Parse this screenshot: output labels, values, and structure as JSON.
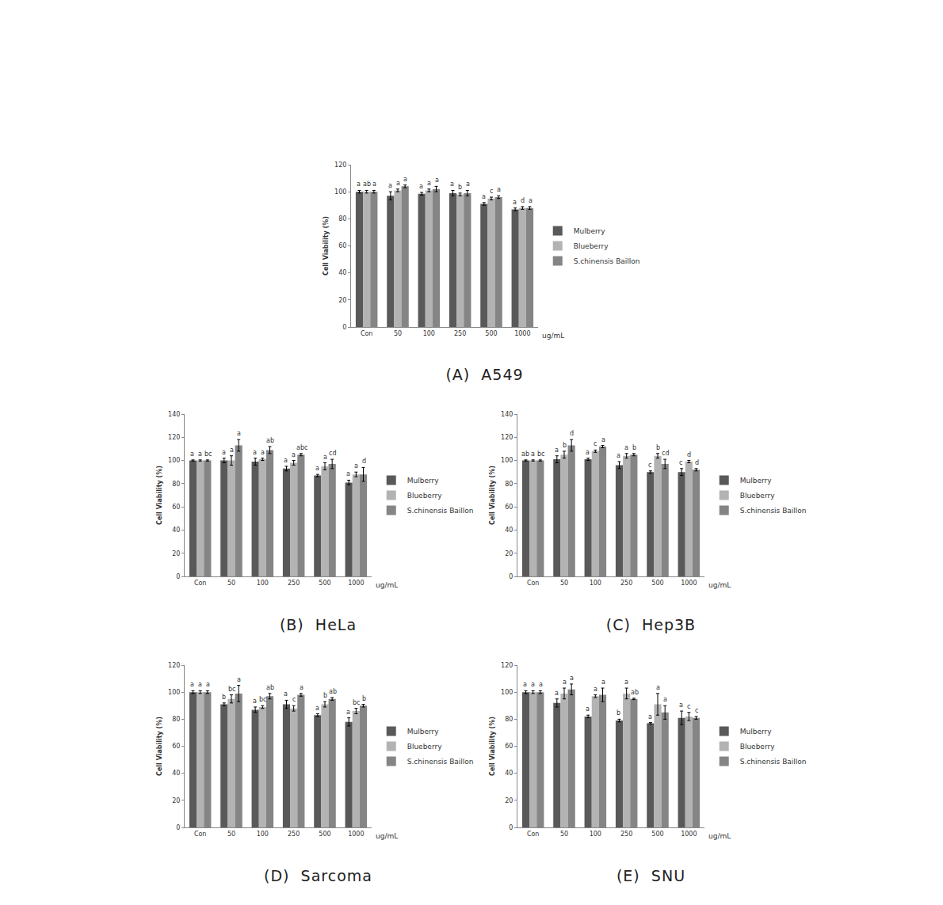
{
  "chart_data": [
    {
      "type": "bar",
      "title": "(A)  A549",
      "categories": [
        "Con",
        "50",
        "100",
        "250",
        "500",
        "1000"
      ],
      "x_label": "ug/mL",
      "y_label": "Cell Viability (%)",
      "ylim": [
        0,
        120
      ],
      "yticks": [
        0,
        20,
        40,
        60,
        80,
        100,
        120
      ],
      "grid": false,
      "series": [
        {
          "name": "Mulberry",
          "color": "#595959",
          "values": [
            100,
            97,
            98.5,
            99,
            91,
            87
          ],
          "errors": [
            1,
            3,
            1,
            2,
            1,
            1
          ],
          "letters": [
            "a",
            "a",
            "a",
            "a",
            "a",
            "a"
          ]
        },
        {
          "name": "Blueberry",
          "color": "#b3b3b3",
          "values": [
            100,
            101,
            101,
            98,
            95,
            88
          ],
          "errors": [
            1,
            1,
            1,
            1,
            1,
            1
          ],
          "letters": [
            "ab",
            "a",
            "a",
            "b",
            "c",
            "d"
          ]
        },
        {
          "name": "S.chinensis Baillon",
          "color": "#858585",
          "values": [
            100,
            104,
            102,
            99,
            96,
            88
          ],
          "errors": [
            1,
            1,
            2,
            2,
            1,
            1
          ],
          "letters": [
            "a",
            "a",
            "a",
            "a",
            "a",
            "a"
          ]
        }
      ]
    },
    {
      "type": "bar",
      "title": "(B)  HeLa",
      "categories": [
        "Con",
        "50",
        "100",
        "250",
        "500",
        "1000"
      ],
      "x_label": "ug/mL",
      "y_label": "Cell Viability (%)",
      "ylim": [
        0,
        140
      ],
      "yticks": [
        0,
        20,
        40,
        60,
        80,
        100,
        120,
        140
      ],
      "grid": false,
      "series": [
        {
          "name": "Mulberry",
          "color": "#595959",
          "values": [
            100,
            100,
            99,
            93,
            87,
            81
          ],
          "errors": [
            0.5,
            2,
            3,
            2,
            1,
            2
          ],
          "letters": [
            "a",
            "a",
            "a",
            "a",
            "a",
            "a"
          ]
        },
        {
          "name": "Blueberry",
          "color": "#b3b3b3",
          "values": [
            100,
            100,
            101,
            98,
            95,
            88
          ],
          "errors": [
            0.5,
            4,
            1,
            2,
            3,
            2
          ],
          "letters": [
            "a",
            "a",
            "a",
            "a",
            "a",
            "a"
          ]
        },
        {
          "name": "S.chinensis Baillon",
          "color": "#858585",
          "values": [
            100,
            113,
            109,
            105,
            97,
            88
          ],
          "errors": [
            0.5,
            5,
            3,
            1,
            4,
            6
          ],
          "letters": [
            "bc",
            "a",
            "ab",
            "abc",
            "cd",
            "d"
          ]
        }
      ]
    },
    {
      "type": "bar",
      "title": "(C)  Hep3B",
      "categories": [
        "Con",
        "50",
        "100",
        "250",
        "500",
        "1000"
      ],
      "x_label": "ug/mL",
      "y_label": "Cell Viability (%)",
      "ylim": [
        0,
        140
      ],
      "yticks": [
        0,
        20,
        40,
        60,
        80,
        100,
        120,
        140
      ],
      "grid": false,
      "series": [
        {
          "name": "Mulberry",
          "color": "#595959",
          "values": [
            100,
            101,
            101,
            96,
            90,
            90
          ],
          "errors": [
            0.5,
            3,
            1,
            3,
            1,
            3
          ],
          "letters": [
            "ab",
            "a",
            "a",
            "a",
            "c",
            "c"
          ]
        },
        {
          "name": "Blueberry",
          "color": "#b3b3b3",
          "values": [
            100,
            105,
            108,
            104,
            104,
            99
          ],
          "errors": [
            0.5,
            3,
            1,
            2,
            2,
            1
          ],
          "letters": [
            "a",
            "b",
            "c",
            "a",
            "b",
            "d"
          ]
        },
        {
          "name": "S.chinensis Baillon",
          "color": "#858585",
          "values": [
            100,
            113,
            112,
            105,
            97,
            92
          ],
          "errors": [
            0.5,
            5,
            1,
            1,
            4,
            1
          ],
          "letters": [
            "bc",
            "d",
            "a",
            "b",
            "cd",
            "d"
          ]
        }
      ]
    },
    {
      "type": "bar",
      "title": "(D)  Sarcoma",
      "categories": [
        "Con",
        "50",
        "100",
        "250",
        "500",
        "1000"
      ],
      "x_label": "ug/mL",
      "y_label": "Cell Viability (%)",
      "ylim": [
        0,
        120
      ],
      "yticks": [
        0,
        20,
        40,
        60,
        80,
        100,
        120
      ],
      "grid": false,
      "series": [
        {
          "name": "Mulberry",
          "color": "#595959",
          "values": [
            100,
            91,
            87,
            91,
            83,
            78
          ],
          "errors": [
            1,
            1,
            2,
            3,
            1,
            3
          ],
          "letters": [
            "a",
            "b",
            "a",
            "a",
            "a",
            "a"
          ]
        },
        {
          "name": "Blueberry",
          "color": "#b3b3b3",
          "values": [
            100,
            95,
            89,
            88,
            91,
            86
          ],
          "errors": [
            1,
            3,
            1,
            2,
            2,
            2
          ],
          "letters": [
            "a",
            "bc",
            "bc",
            "c",
            "b",
            "bc"
          ]
        },
        {
          "name": "S.chinensis Baillon",
          "color": "#858585",
          "values": [
            100,
            99,
            97,
            98,
            95,
            90
          ],
          "errors": [
            1,
            6,
            2,
            1,
            1,
            1
          ],
          "letters": [
            "a",
            "a",
            "ab",
            "a",
            "ab",
            "b"
          ]
        }
      ]
    },
    {
      "type": "bar",
      "title": "(E)  SNU",
      "categories": [
        "Con",
        "50",
        "100",
        "250",
        "500",
        "1000"
      ],
      "x_label": "ug/mL",
      "y_label": "Cell Viability (%)",
      "ylim": [
        0,
        120
      ],
      "yticks": [
        0,
        20,
        40,
        60,
        80,
        100,
        120
      ],
      "grid": false,
      "series": [
        {
          "name": "Mulberry",
          "color": "#595959",
          "values": [
            100,
            92,
            82,
            79,
            77,
            81
          ],
          "errors": [
            1,
            3,
            1,
            1,
            0.5,
            5
          ],
          "letters": [
            "a",
            "a",
            "a",
            "b",
            "a",
            "a"
          ]
        },
        {
          "name": "Blueberry",
          "color": "#b3b3b3",
          "values": [
            100,
            99,
            97,
            99,
            91,
            82
          ],
          "errors": [
            1,
            4,
            1,
            4,
            8,
            3
          ],
          "letters": [
            "a",
            "a",
            "a",
            "a",
            "a",
            "c"
          ]
        },
        {
          "name": "S.chinensis Baillon",
          "color": "#858585",
          "values": [
            100,
            102,
            98,
            95,
            85,
            81
          ],
          "errors": [
            1,
            4,
            5,
            0.5,
            5,
            1
          ],
          "letters": [
            "a",
            "a",
            "a",
            "ab",
            "a",
            "c"
          ]
        }
      ]
    }
  ]
}
